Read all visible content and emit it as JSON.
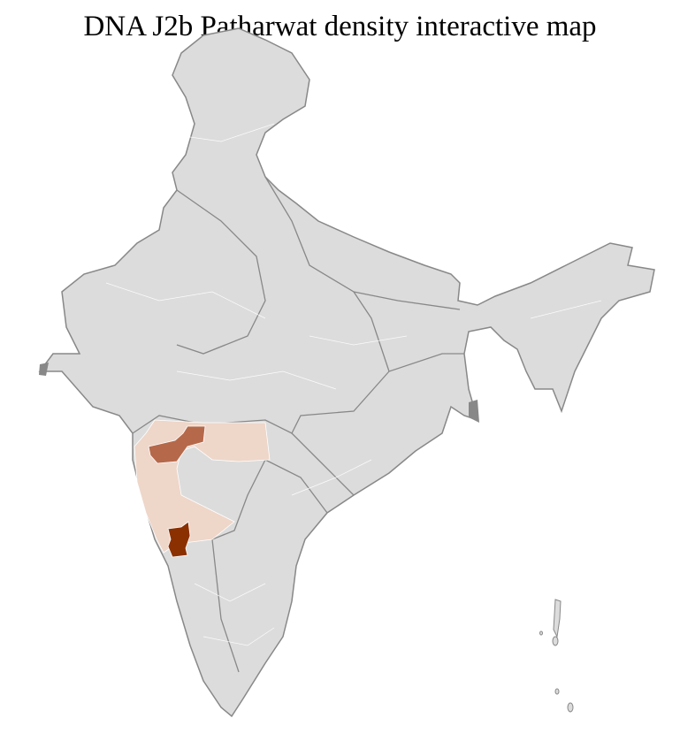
{
  "title": "DNA J2b Patharwat density interactive map",
  "map": {
    "region": "India districts",
    "colors": {
      "no_data": "#dcdcdc",
      "state_border": "#888888",
      "district_border": "#ffffff",
      "low": "#eed6c9",
      "medium": "#b5694a",
      "high": "#8b3000"
    }
  }
}
